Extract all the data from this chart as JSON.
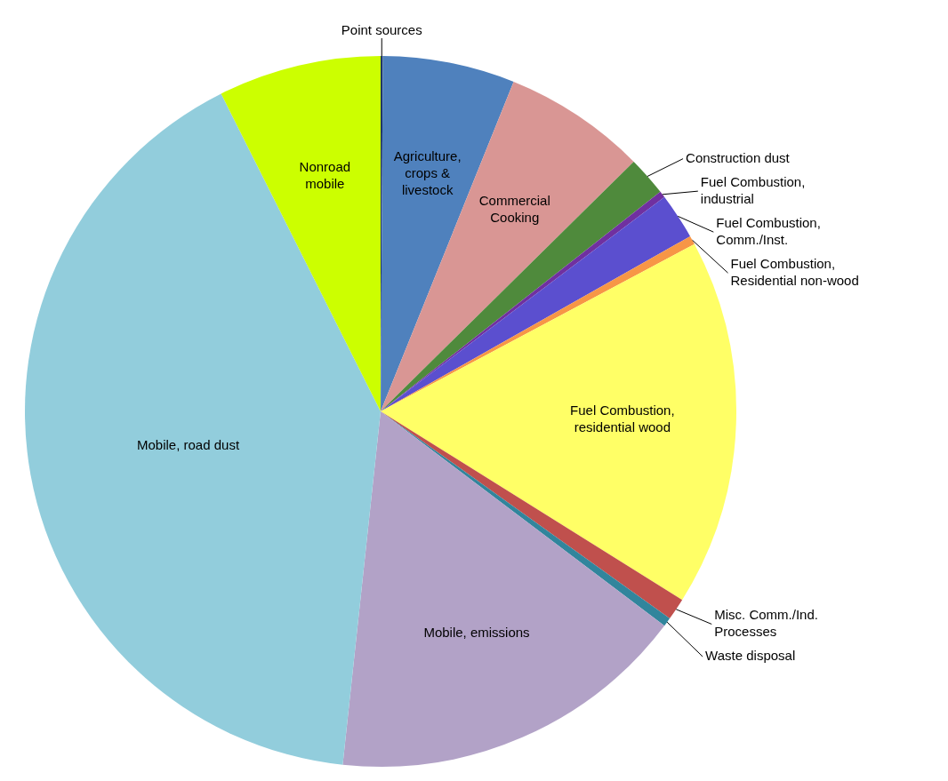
{
  "chart_data": {
    "type": "pie",
    "categories": [
      "Point sources",
      "Agriculture, crops & livestock",
      "Commercial Cooking",
      "Construction dust",
      "Fuel Combustion, industrial",
      "Fuel Combustion, Comm./Inst.",
      "Fuel Combustion, Residential non-wood",
      "Fuel Combustion, residential wood",
      "Misc. Comm./Ind. Processes",
      "Waste disposal",
      "Mobile, emissions",
      "Mobile, road dust",
      "Nonroad mobile"
    ],
    "values": [
      0.1,
      6.0,
      6.5,
      1.8,
      0.3,
      2.1,
      0.4,
      16.7,
      1.0,
      0.4,
      16.4,
      40.9,
      7.4
    ],
    "colors": [
      "#1f3864",
      "#4f81bd",
      "#d99694",
      "#4f8a3c",
      "#7030a0",
      "#5b4fcf",
      "#f79646",
      "#ffff66",
      "#c0504d",
      "#31859c",
      "#b2a2c7",
      "#92cddc",
      "#ccff00"
    ],
    "legend": false
  }
}
